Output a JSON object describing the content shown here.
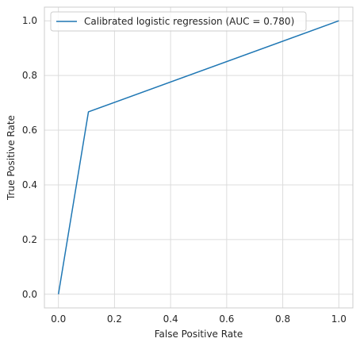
{
  "chart_data": {
    "type": "line",
    "xlabel": "False Positive Rate",
    "ylabel": "True Positive Rate",
    "xlim": [
      -0.05,
      1.05
    ],
    "ylim": [
      -0.05,
      1.05
    ],
    "xticks": [
      0.0,
      0.2,
      0.4,
      0.6,
      0.8,
      1.0
    ],
    "yticks": [
      0.0,
      0.2,
      0.4,
      0.6,
      0.8,
      1.0
    ],
    "xtick_labels": [
      "0.0",
      "0.2",
      "0.4",
      "0.6",
      "0.8",
      "1.0"
    ],
    "ytick_labels": [
      "0.0",
      "0.2",
      "0.4",
      "0.6",
      "0.8",
      "1.0"
    ],
    "grid": true,
    "legend_position": "top-left",
    "series": [
      {
        "name": "Calibrated logistic regression (AUC = 0.780)",
        "color": "#1f77b4",
        "x": [
          0.0,
          0.107,
          1.0
        ],
        "y": [
          0.0,
          0.667,
          1.0
        ]
      }
    ]
  }
}
